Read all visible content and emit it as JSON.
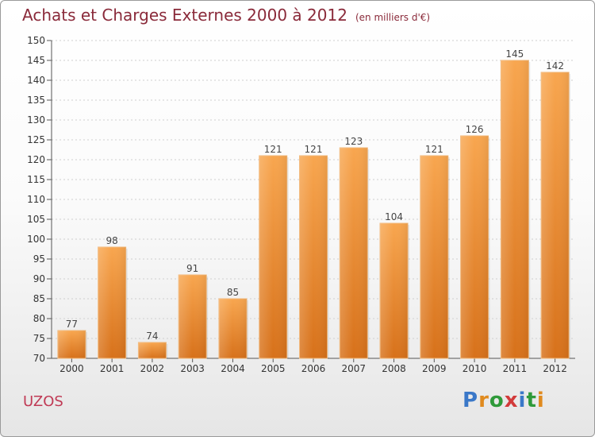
{
  "title": "Achats et Charges Externes 2000 à 2012",
  "unit_note": "(en milliers d'€)",
  "place": "UZOS",
  "brand": {
    "letters": [
      "P",
      "r",
      "o",
      "x",
      "i",
      "t",
      "i"
    ]
  },
  "colors": {
    "bar_light": "#f7a54d",
    "bar_dark": "#d9741a",
    "title": "#8a2a3a",
    "place": "#c03a55"
  },
  "chart_data": {
    "type": "bar",
    "title": "Achats et Charges Externes 2000 à 2012",
    "subtitle": "(en milliers d'€)",
    "categories": [
      "2000",
      "2001",
      "2002",
      "2003",
      "2004",
      "2005",
      "2006",
      "2007",
      "2008",
      "2009",
      "2010",
      "2011",
      "2012"
    ],
    "values": [
      77,
      98,
      74,
      91,
      85,
      121,
      121,
      123,
      104,
      121,
      126,
      145,
      142
    ],
    "ylim": [
      70,
      150
    ],
    "yticks": [
      70,
      75,
      80,
      85,
      90,
      95,
      100,
      105,
      110,
      115,
      120,
      125,
      130,
      135,
      140,
      145,
      150
    ],
    "grid": true,
    "data_labels": true
  }
}
